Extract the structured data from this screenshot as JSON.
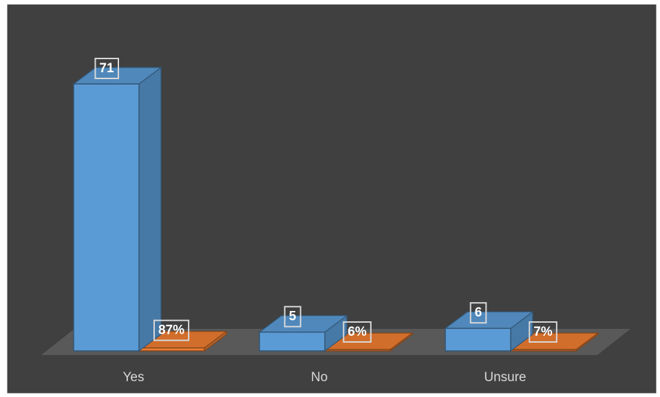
{
  "chart_data": {
    "type": "bar",
    "style": "3d-clustered-column",
    "title": "",
    "xlabel": "",
    "ylabel": "",
    "categories": [
      "Yes",
      "No",
      "Unsure"
    ],
    "series": [
      {
        "values": [
          71,
          5,
          6
        ],
        "labels": [
          "71",
          "5",
          "6"
        ],
        "color": "#5b9bd5"
      },
      {
        "values": [
          87,
          6,
          7
        ],
        "unit": "%",
        "labels": [
          "87%",
          "6%",
          "7%"
        ],
        "color": "#ed7d31"
      }
    ],
    "legend": "none",
    "grid": false,
    "axis_visible": false
  },
  "colors": {
    "background": "#404040",
    "frame": "#ffffff",
    "floor": "#595959",
    "axis_text": "#d9d9d9",
    "label_text": "#ffffff"
  }
}
